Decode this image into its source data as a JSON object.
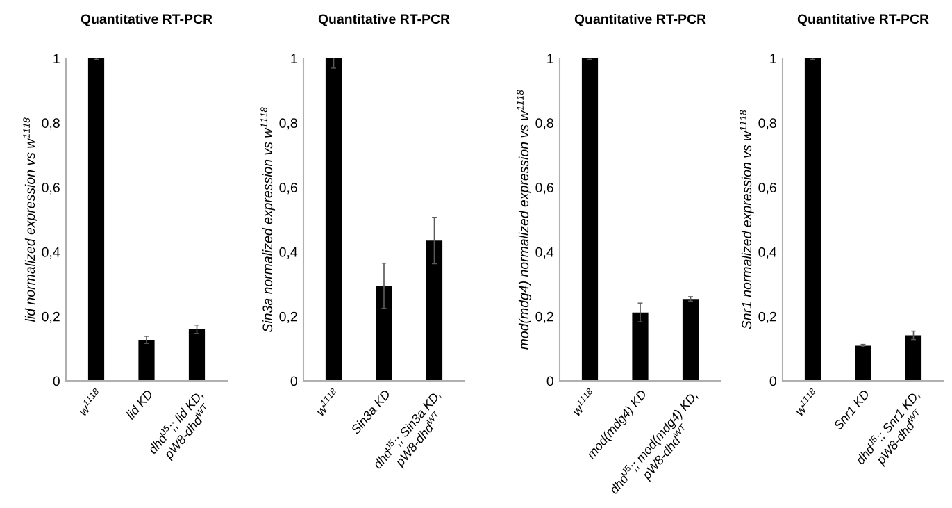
{
  "chart_data": [
    {
      "type": "bar",
      "title": "Quantitative RT-PCR",
      "ylabel": "lid normalized expression vs w$^{1118}$",
      "categories": [
        "w$^{1118}$",
        "lid KD",
        "dhd$^{J5}$;; lid KD,\npW8-dhd$^{WT}$"
      ],
      "values": [
        1.0,
        0.127,
        0.16
      ],
      "errors": [
        0.003,
        0.011,
        0.013
      ],
      "color": "#000000",
      "ylim": [
        0,
        1
      ],
      "yticks": [
        0,
        {
          "value": 0.2,
          "label": "0,2"
        },
        {
          "value": 0.4,
          "label": "0,4"
        },
        {
          "value": 0.6,
          "label": "0,6"
        },
        {
          "value": 0.8,
          "label": "0,8"
        },
        1
      ]
    },
    {
      "type": "bar",
      "title": "Quantitative RT-PCR",
      "ylabel": "Sin3a normalized expression vs w$^{1118}$",
      "categories": [
        "w$^{1118}$",
        "Sin3a KD",
        "dhd$^{J5}$;; Sin3a KD,\npW8-dhd$^{WT}$"
      ],
      "values": [
        1.0,
        0.295,
        0.435
      ],
      "errors": [
        0.03,
        0.07,
        0.072
      ],
      "color": "#000000",
      "ylim": [
        0,
        1
      ],
      "yticks": [
        0,
        {
          "value": 0.2,
          "label": "0,2"
        },
        {
          "value": 0.4,
          "label": "0,4"
        },
        {
          "value": 0.6,
          "label": "0,6"
        },
        {
          "value": 0.8,
          "label": "0,8"
        },
        1
      ]
    },
    {
      "type": "bar",
      "title": "Quantitative RT-PCR",
      "ylabel": "mod(mdg4) normalized expression vs w$^{1118}$",
      "categories": [
        "w$^{1118}$",
        "mod(mdg4) KD",
        "dhd$^{J5}$;; mod(mdg4) KD,\npW8-dhd$^{WT}$"
      ],
      "values": [
        1.0,
        0.212,
        0.254
      ],
      "errors": [
        0.003,
        0.029,
        0.007
      ],
      "color": "#000000",
      "ylim": [
        0,
        1
      ],
      "yticks": [
        0,
        {
          "value": 0.2,
          "label": "0,2"
        },
        {
          "value": 0.4,
          "label": "0,4"
        },
        {
          "value": 0.6,
          "label": "0,6"
        },
        {
          "value": 0.8,
          "label": "0,8"
        },
        1
      ]
    },
    {
      "type": "bar",
      "title": "Quantitative RT-PCR",
      "ylabel": "Snr1 normalized expression vs w$^{1118}$",
      "categories": [
        "w$^{1118}$",
        "Snr1 KD",
        "dhd$^{J5}$;; Snr1 KD,\npW8-dhd$^{WT}$"
      ],
      "values": [
        1.0,
        0.109,
        0.141
      ],
      "errors": [
        0.003,
        0.004,
        0.013
      ],
      "color": "#000000",
      "ylim": [
        0,
        1
      ],
      "yticks": [
        0,
        {
          "value": 0.2,
          "label": "0,2"
        },
        {
          "value": 0.4,
          "label": "0,4"
        },
        {
          "value": 0.6,
          "label": "0,6"
        },
        {
          "value": 0.8,
          "label": "0,8"
        },
        1
      ]
    }
  ]
}
